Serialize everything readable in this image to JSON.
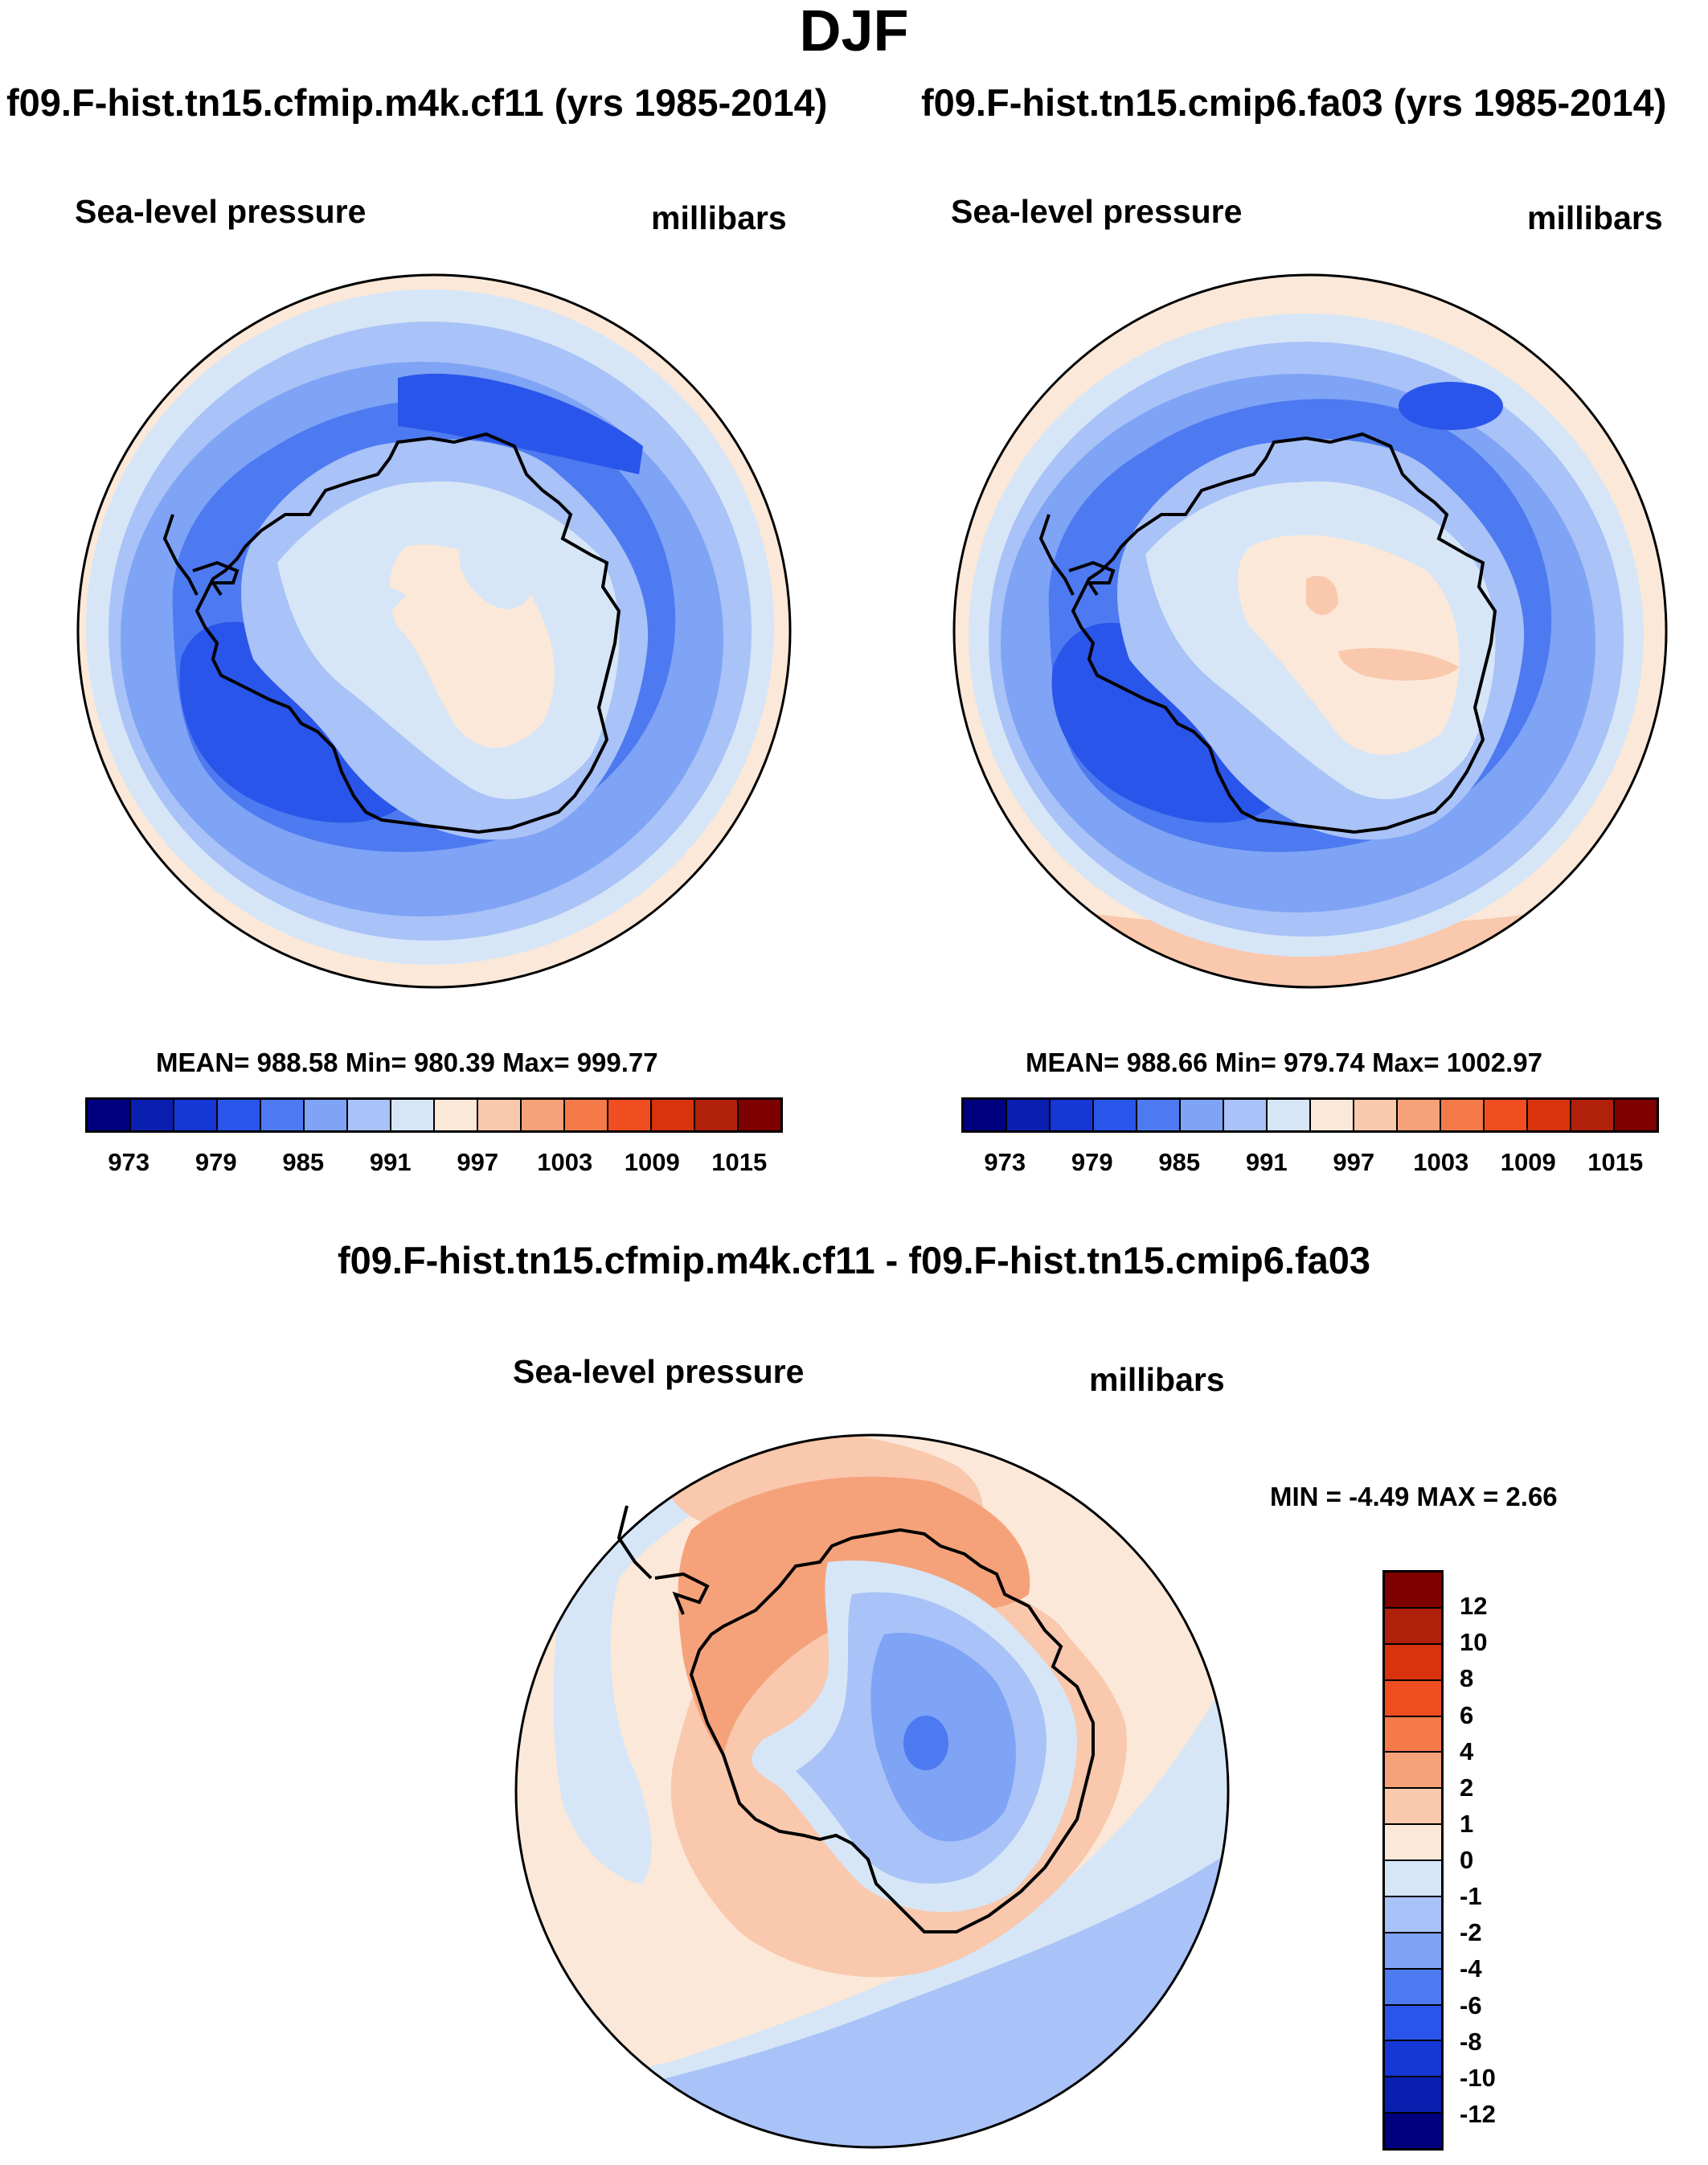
{
  "figure": {
    "title": "DJF",
    "difference_title": "f09.F-hist.tn15.cfmip.m4k.cf11 - f09.F-hist.tn15.cmip6.fa03"
  },
  "panels": [
    {
      "case_title": "f09.F-hist.tn15.cfmip.m4k.cf11 (yrs 1985-2014)",
      "variable": "Sea-level pressure",
      "units": "millibars",
      "stats": "MEAN= 988.58  Min= 980.39  Max= 999.77"
    },
    {
      "case_title": "f09.F-hist.tn15.cmip6.fa03 (yrs 1985-2014)",
      "variable": "Sea-level pressure",
      "units": "millibars",
      "stats": "MEAN= 988.66  Min= 979.74  Max= 1002.97"
    },
    {
      "variable": "Sea-level pressure",
      "units": "millibars",
      "stats": "MIN =  -4.49 MAX =   2.66"
    }
  ],
  "colorbar_abs": {
    "colors": [
      "#00007f",
      "#0a1fb0",
      "#1537d5",
      "#2a55ea",
      "#4d7af0",
      "#7fa3f5",
      "#a9c2f7",
      "#d6e6f7",
      "#fbe8d8",
      "#f9c8ad",
      "#f5a27a",
      "#f47a4a",
      "#f04d20",
      "#d8330d",
      "#b1200a",
      "#7f0000"
    ],
    "tick_labels": [
      "973",
      "979",
      "985",
      "991",
      "997",
      "1003",
      "1009",
      "1015"
    ]
  },
  "colorbar_diff": {
    "colors": [
      "#7f0000",
      "#b1200a",
      "#d8330d",
      "#f04d20",
      "#f47a4a",
      "#f5a27a",
      "#f9c8ad",
      "#fbe8d8",
      "#d6e6f7",
      "#a9c2f7",
      "#7fa3f5",
      "#4d7af0",
      "#2a55ea",
      "#1537d5",
      "#0a1fb0",
      "#00007f"
    ],
    "tick_labels": [
      "12",
      "10",
      "8",
      "6",
      "4",
      "2",
      "1",
      "0",
      "-1",
      "-2",
      "-4",
      "-6",
      "-8",
      "-10",
      "-12"
    ]
  }
}
